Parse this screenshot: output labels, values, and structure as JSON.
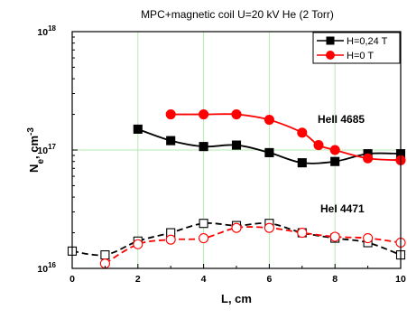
{
  "chart_data": {
    "type": "line",
    "title": "MPC+magnetic coil U=20 kV He (2 Torr)",
    "xlabel": "L, cm",
    "ylabel_main": "N",
    "ylabel_sub": "e",
    "ylabel_unit": ", cm",
    "ylabel_exp": "-3",
    "x_ticks": [
      "0",
      "2",
      "4",
      "6",
      "8",
      "10"
    ],
    "y_ticks": [
      {
        "base": "10",
        "exp": "16"
      },
      {
        "base": "10",
        "exp": "17"
      },
      {
        "base": "10",
        "exp": "18"
      }
    ],
    "xlim": [
      0,
      10
    ],
    "ylim_log10": [
      16,
      18
    ],
    "y_scale": "log",
    "grid": true,
    "legend_placement": "top-right",
    "annotations": [
      "HeII 4685",
      "HeI 4471"
    ],
    "series": [
      {
        "name": "H=0,24 T",
        "line": "HeII 4685",
        "marker": "square-filled",
        "color": "#000000",
        "dashed": false,
        "x": [
          2,
          3,
          4,
          5,
          6,
          7,
          8,
          9,
          10
        ],
        "y": [
          1.5e+17,
          1.2e+17,
          1.07e+17,
          1.1e+17,
          9.5e+16,
          7.8e+16,
          8e+16,
          9.3e+16,
          9.3e+16
        ]
      },
      {
        "name": "H=0 T",
        "line": "HeII 4685",
        "marker": "circle-filled",
        "color": "#ff0000",
        "dashed": false,
        "x": [
          3,
          4,
          5,
          6,
          7,
          7.5,
          8,
          9,
          10
        ],
        "y": [
          2e+17,
          2e+17,
          2e+17,
          1.8e+17,
          1.4e+17,
          1.1e+17,
          1e+17,
          8.5e+16,
          8.2e+16
        ]
      },
      {
        "name": "",
        "line": "HeI 4471",
        "marker": "square-open",
        "color": "#000000",
        "dashed": true,
        "x": [
          0,
          1,
          2,
          3,
          4,
          5,
          6,
          7,
          8,
          9,
          10
        ],
        "y": [
          1.4e+16,
          1.3e+16,
          1.7e+16,
          2e+16,
          2.4e+16,
          2.3e+16,
          2.4e+16,
          2e+16,
          1.8e+16,
          1.65e+16,
          1.3e+16
        ]
      },
      {
        "name": "",
        "line": "HeI 4471",
        "marker": "circle-open",
        "color": "#ff0000",
        "dashed": true,
        "x": [
          1,
          2,
          3,
          4,
          5,
          6,
          7,
          8,
          9,
          10
        ],
        "y": [
          1.1e+16,
          1.6e+16,
          1.75e+16,
          1.8e+16,
          2.2e+16,
          2.2e+16,
          2e+16,
          1.85e+16,
          1.8e+16,
          1.65e+16
        ]
      }
    ]
  }
}
